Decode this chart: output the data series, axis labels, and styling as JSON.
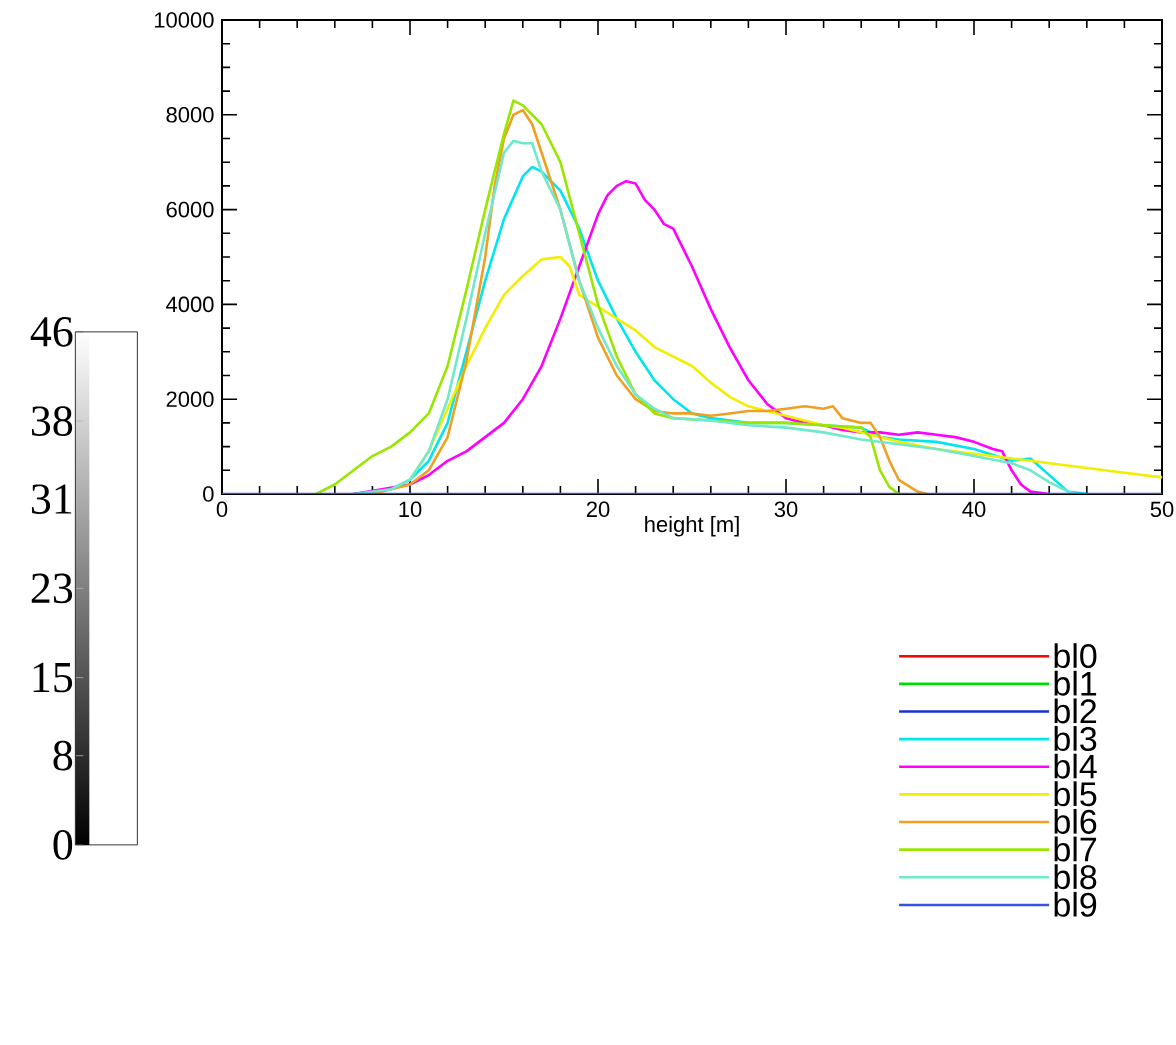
{
  "chart_data": [
    {
      "type": "line",
      "xlabel": "height [m]",
      "xlim": [
        0,
        50
      ],
      "xticks": [
        0,
        10,
        20,
        30,
        40,
        50
      ],
      "ylim": [
        0,
        10000
      ],
      "yticks": [
        0,
        2000,
        4000,
        6000,
        8000,
        10000
      ],
      "grid": false,
      "legend": "bottom right",
      "marker": "none",
      "line_style": "solid",
      "series": [
        {
          "name": "bl0",
          "color": "#ff0000",
          "values": [
            null
          ]
        },
        {
          "name": "bl1",
          "color": "#00dd00",
          "values": [
            null
          ]
        },
        {
          "name": "bl2",
          "color": "#1a2fd0",
          "values": [
            null
          ]
        },
        {
          "name": "bl3",
          "color": "#00e5ee",
          "x": [
            7,
            9,
            10,
            11,
            12,
            13,
            14,
            15,
            16,
            16.5,
            17,
            18,
            19,
            20,
            21,
            22,
            23,
            24,
            25,
            26,
            28,
            30,
            32,
            34,
            35,
            36,
            38,
            40,
            42,
            43,
            44,
            45,
            46
          ],
          "values": [
            0,
            100,
            300,
            700,
            1500,
            3000,
            4500,
            5800,
            6700,
            6900,
            6800,
            6400,
            5600,
            4500,
            3700,
            3000,
            2400,
            2000,
            1700,
            1600,
            1500,
            1500,
            1450,
            1400,
            1200,
            1150,
            1100,
            950,
            700,
            750,
            400,
            50,
            0
          ]
        },
        {
          "name": "bl4",
          "color": "#ff00ff",
          "x": [
            7,
            10,
            11,
            12,
            13,
            14,
            15,
            16,
            17,
            18,
            19,
            20,
            20.5,
            21,
            21.5,
            22,
            22.5,
            23,
            23.5,
            24,
            25,
            26,
            27,
            28,
            29,
            30,
            31,
            32,
            33,
            34,
            35,
            36,
            37,
            38,
            39,
            40,
            41,
            41.5,
            42,
            42.5,
            43,
            44
          ],
          "values": [
            0,
            200,
            400,
            700,
            900,
            1200,
            1500,
            2000,
            2700,
            3700,
            4800,
            5900,
            6300,
            6500,
            6600,
            6550,
            6200,
            6000,
            5700,
            5600,
            4800,
            3900,
            3100,
            2400,
            1900,
            1600,
            1500,
            1450,
            1350,
            1300,
            1300,
            1250,
            1300,
            1250,
            1200,
            1100,
            950,
            900,
            500,
            200,
            50,
            0
          ]
        },
        {
          "name": "bl5",
          "color": "#f2ee00",
          "x": [
            10,
            11,
            12,
            13,
            14,
            15,
            16,
            17,
            18,
            18.5,
            19,
            20,
            21,
            22,
            23,
            24,
            25,
            26,
            27,
            28,
            29,
            30,
            31,
            32,
            33,
            34,
            35,
            36,
            38,
            40,
            42,
            44,
            46,
            48,
            50
          ],
          "values": [
            300,
            900,
            1800,
            2700,
            3500,
            4200,
            4600,
            4950,
            5000,
            4800,
            4200,
            3950,
            3700,
            3450,
            3100,
            2900,
            2700,
            2350,
            2050,
            1850,
            1750,
            1650,
            1550,
            1450,
            1400,
            1300,
            1200,
            1100,
            950,
            850,
            750,
            650,
            550,
            450,
            350
          ]
        },
        {
          "name": "bl6",
          "color": "#f0a020",
          "x": [
            8,
            10,
            11,
            12,
            13,
            14,
            14.5,
            15,
            15.5,
            16,
            16.5,
            17,
            18,
            19,
            20,
            21,
            22,
            23,
            24,
            25,
            26,
            27,
            28,
            29,
            30,
            31,
            32,
            32.5,
            33,
            34,
            34.5,
            35,
            35.5,
            36,
            37,
            37.5
          ],
          "values": [
            0,
            200,
            500,
            1200,
            2800,
            5000,
            6500,
            7500,
            8000,
            8100,
            7800,
            7200,
            6000,
            4500,
            3300,
            2500,
            2000,
            1750,
            1700,
            1700,
            1650,
            1700,
            1750,
            1750,
            1800,
            1850,
            1800,
            1850,
            1600,
            1500,
            1500,
            1200,
            700,
            300,
            50,
            0
          ]
        },
        {
          "name": "bl7",
          "color": "#99e600",
          "x": [
            5,
            6,
            7,
            8,
            9,
            10,
            11,
            12,
            13,
            14,
            15,
            15.5,
            16,
            17,
            18,
            19,
            20,
            21,
            22,
            23,
            24,
            26,
            28,
            30,
            32,
            34,
            34.5,
            35,
            35.5,
            36
          ],
          "values": [
            0,
            200,
            500,
            800,
            1000,
            1300,
            1700,
            2700,
            4300,
            6000,
            7600,
            8300,
            8200,
            7800,
            7000,
            5500,
            4000,
            2900,
            2100,
            1700,
            1600,
            1550,
            1500,
            1500,
            1450,
            1400,
            1200,
            500,
            150,
            0
          ]
        },
        {
          "name": "bl8",
          "color": "#70e8cc",
          "x": [
            7,
            9,
            10,
            11,
            12,
            13,
            14,
            15,
            15.5,
            16,
            16.5,
            17,
            18,
            19,
            20,
            21,
            22,
            23,
            24,
            26,
            28,
            30,
            32,
            34,
            36,
            38,
            40,
            42,
            43,
            44,
            45,
            45.5
          ],
          "values": [
            0,
            100,
            300,
            900,
            2000,
            3700,
            5500,
            7200,
            7450,
            7400,
            7400,
            6800,
            6000,
            4500,
            3500,
            2700,
            2100,
            1800,
            1600,
            1550,
            1450,
            1400,
            1300,
            1150,
            1050,
            950,
            800,
            650,
            500,
            250,
            50,
            0
          ]
        },
        {
          "name": "bl9",
          "color": "#3355dd",
          "x": [
            0,
            50
          ],
          "values": [
            0,
            0
          ]
        }
      ],
      "clim": [
        0,
        46
      ],
      "cticks": [
        0,
        8,
        15,
        23,
        31,
        38,
        46
      ]
    }
  ]
}
